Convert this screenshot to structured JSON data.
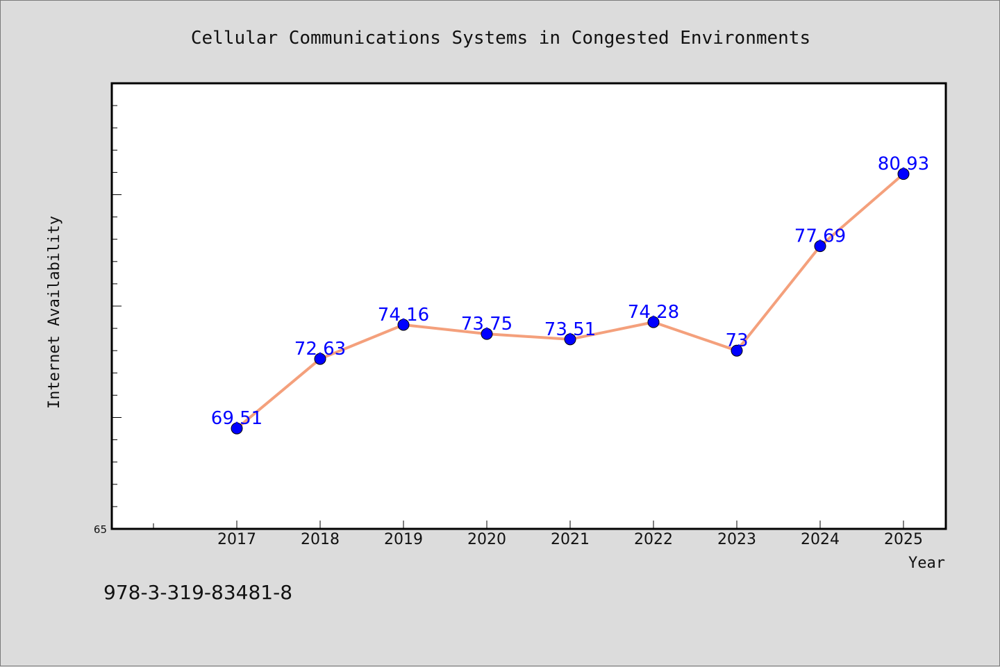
{
  "chart_data": {
    "type": "line",
    "title": "Cellular Communications Systems in Congested Environments",
    "xlabel": "Year",
    "ylabel": "Internet Availability",
    "x": [
      "2017",
      "2018",
      "2019",
      "2020",
      "2021",
      "2022",
      "2023",
      "2024",
      "2025"
    ],
    "series": [
      {
        "values": [
          69.51,
          72.63,
          74.16,
          73.75,
          73.51,
          74.28,
          73,
          77.69,
          80.93
        ],
        "data_labels": [
          "69.51",
          "72.63",
          "74.16",
          "73.75",
          "73.51",
          "74.28",
          "73",
          "77.69",
          "80.93"
        ]
      }
    ],
    "ylim": [
      65,
      85
    ],
    "y_tick_labels": [
      "65"
    ],
    "grid": false,
    "line_color": "#f4a07c",
    "marker_color": "#0000ff"
  },
  "footer": {
    "isbn": "978-3-319-83481-8"
  }
}
